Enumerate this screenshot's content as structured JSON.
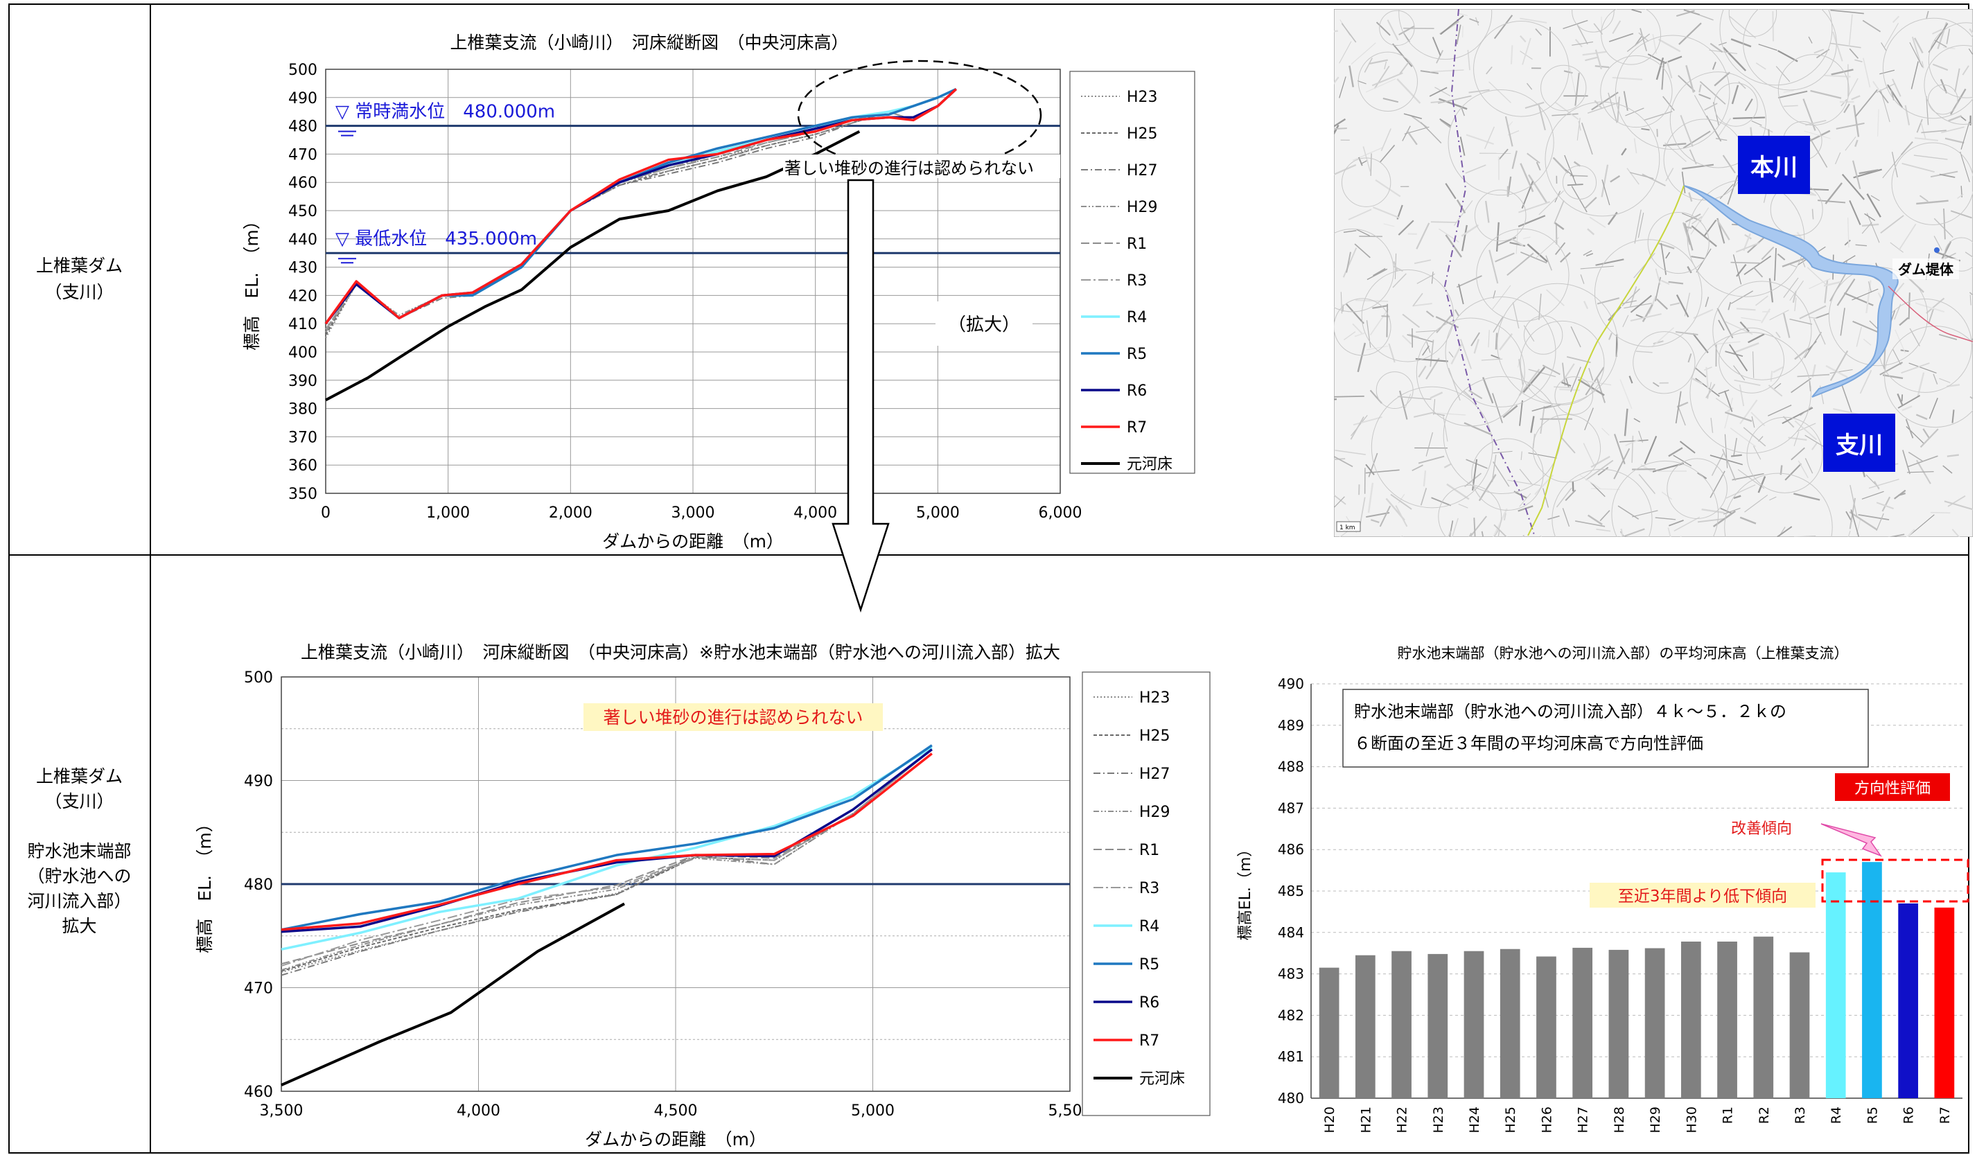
{
  "row_labels": [
    {
      "lines": [
        "上椎葉ダム",
        "（支川）"
      ]
    },
    {
      "lines": [
        "上椎葉ダム",
        "（支川）",
        "",
        "貯水池末端部",
        "（貯水池への",
        "河川流入部）",
        "拡大"
      ]
    }
  ],
  "legend": [
    {
      "name": "H23",
      "color": "#8a8a8a",
      "dash": "2,3"
    },
    {
      "name": "H25",
      "color": "#6a6a6a",
      "dash": "5,3"
    },
    {
      "name": "H27",
      "color": "#7a7a7a",
      "dash": "10,4,2,4"
    },
    {
      "name": "H29",
      "color": "#909090",
      "dash": "8,3,2,3,2,3"
    },
    {
      "name": "R1",
      "color": "#8c8c8c",
      "dash": "12,5"
    },
    {
      "name": "R3",
      "color": "#9a9a9a",
      "dash": "14,4,3,4"
    },
    {
      "name": "R4",
      "color": "#7ff0ff",
      "dash": ""
    },
    {
      "name": "R5",
      "color": "#1f78c0",
      "dash": ""
    },
    {
      "name": "R6",
      "color": "#0a0a8a",
      "dash": ""
    },
    {
      "name": "R7",
      "color": "#ff1a1a",
      "dash": ""
    },
    {
      "name": "元河床",
      "color": "#000000",
      "dash": ""
    }
  ],
  "map": {
    "label_main": "本川",
    "label_branch": "支川",
    "label_dam": "ダム堤体",
    "scale_text": "1 km"
  },
  "chart_data": [
    {
      "type": "line",
      "title": "上椎葉支流（小崎川）　河床縦断図　（中央河床高）",
      "xlabel": "ダムからの距離　（m）",
      "ylabel": "標高　EL.　（m）",
      "xlim": [
        0,
        6000
      ],
      "ylim": [
        350,
        500
      ],
      "xticks": [
        0,
        1000,
        2000,
        3000,
        4000,
        5000,
        6000
      ],
      "xtick_labels": [
        "0",
        "1,000",
        "2,000",
        "3,000",
        "4,000",
        "5,000",
        "6,000"
      ],
      "yticks": [
        350,
        360,
        370,
        380,
        390,
        400,
        410,
        420,
        430,
        440,
        450,
        460,
        470,
        480,
        490,
        500
      ],
      "hlines": [
        {
          "y": 480,
          "label": "▽ 常時満水位　480.000m"
        },
        {
          "y": 435,
          "label": "▽ 最低水位　435.000m"
        }
      ],
      "annotations": [
        "著しい堆砂の進行は認められない",
        "（拡大）"
      ],
      "series": [
        {
          "name": "元河床",
          "x": [
            0,
            350,
            600,
            1000,
            1300,
            1600,
            2000,
            2400,
            2800,
            3200,
            3600,
            4000,
            4360
          ],
          "y": [
            383,
            391,
            398,
            409,
            416,
            422,
            437,
            447,
            450,
            457,
            462,
            470,
            478
          ]
        },
        {
          "name": "H23",
          "x": [
            0,
            250,
            600,
            950,
            1200,
            1600,
            2000,
            2400,
            2800,
            3200,
            3600,
            4000,
            4300,
            4600,
            4800,
            5000,
            5150
          ],
          "y": [
            405,
            424,
            413,
            420,
            420,
            430,
            450,
            460,
            465,
            469,
            473,
            477,
            481,
            485,
            482,
            487,
            493
          ]
        },
        {
          "name": "H25",
          "x": [
            0,
            250,
            600,
            950,
            1200,
            1600,
            2000,
            2400,
            2800,
            3200,
            3600,
            4000,
            4300,
            4600,
            4800,
            5000,
            5150
          ],
          "y": [
            406,
            424,
            412,
            420,
            420,
            430,
            450,
            459,
            464,
            468,
            473,
            477,
            481,
            485,
            482,
            487,
            493
          ]
        },
        {
          "name": "H27",
          "x": [
            0,
            250,
            600,
            950,
            1200,
            1600,
            2000,
            2400,
            2800,
            3200,
            3600,
            4000,
            4300,
            4600,
            4800,
            5000,
            5150
          ],
          "y": [
            407,
            424,
            412,
            419,
            420,
            430,
            450,
            459,
            463,
            467,
            472,
            476,
            481,
            485,
            482,
            487,
            493
          ]
        },
        {
          "name": "H29",
          "x": [
            0,
            250,
            600,
            950,
            1200,
            1600,
            2000,
            2400,
            2800,
            3200,
            3600,
            4000,
            4300,
            4600,
            4800,
            5000,
            5150
          ],
          "y": [
            407,
            424,
            413,
            420,
            421,
            430,
            450,
            460,
            464,
            468,
            473,
            477,
            481,
            485,
            482,
            487,
            493
          ]
        },
        {
          "name": "R1",
          "x": [
            0,
            250,
            600,
            950,
            1200,
            1600,
            2000,
            2400,
            2800,
            3200,
            3600,
            4000,
            4300,
            4600,
            4800,
            5000,
            5150
          ],
          "y": [
            408,
            424,
            412,
            420,
            420,
            430,
            450,
            460,
            465,
            469,
            474,
            478,
            482,
            485,
            482,
            487,
            493
          ]
        },
        {
          "name": "R3",
          "x": [
            0,
            250,
            600,
            950,
            1200,
            1600,
            2000,
            2400,
            2800,
            3200,
            3600,
            4000,
            4300,
            4600,
            4800,
            5000,
            5150
          ],
          "y": [
            408,
            424,
            412,
            420,
            420,
            430,
            450,
            460,
            465,
            470,
            474,
            478,
            482,
            485,
            482,
            487,
            493
          ]
        },
        {
          "name": "R4",
          "x": [
            0,
            250,
            600,
            950,
            1200,
            1600,
            2000,
            2400,
            2800,
            3200,
            3600,
            4000,
            4300,
            4600,
            4800,
            5000,
            5150
          ],
          "y": [
            410,
            424,
            412,
            420,
            420,
            430,
            450,
            460,
            466,
            471,
            475,
            479,
            483,
            485,
            487,
            490,
            493
          ]
        },
        {
          "name": "R5",
          "x": [
            0,
            250,
            600,
            950,
            1200,
            1600,
            2000,
            2400,
            2800,
            3200,
            3600,
            4000,
            4300,
            4600,
            4800,
            5000,
            5150
          ],
          "y": [
            410,
            424,
            412,
            420,
            420,
            430,
            450,
            460,
            467,
            472,
            476,
            480,
            483,
            484,
            487,
            490,
            493
          ]
        },
        {
          "name": "R6",
          "x": [
            0,
            250,
            600,
            950,
            1200,
            1600,
            2000,
            2400,
            2800,
            3200,
            3600,
            4000,
            4300,
            4600,
            4800,
            5000,
            5150
          ],
          "y": [
            410,
            424,
            412,
            420,
            421,
            431,
            450,
            460,
            466,
            470,
            475,
            479,
            482,
            483,
            483,
            487,
            493
          ]
        },
        {
          "name": "R7",
          "x": [
            0,
            250,
            600,
            950,
            1200,
            1600,
            2000,
            2400,
            2800,
            3200,
            3600,
            4000,
            4300,
            4600,
            4800,
            5000,
            5150
          ],
          "y": [
            410,
            425,
            412,
            420,
            421,
            431,
            450,
            461,
            468,
            470,
            475,
            478,
            482,
            483,
            482,
            487,
            493
          ]
        }
      ]
    },
    {
      "type": "line",
      "title": "上椎葉支流（小崎川）　河床縦断図　（中央河床高）※貯水池末端部（貯水池への河川流入部）拡大",
      "xlabel": "ダムからの距離　（m）",
      "ylabel": "標高　EL.　（m）",
      "xlim": [
        3500,
        5500
      ],
      "ylim": [
        460,
        500
      ],
      "xticks": [
        3500,
        4000,
        4500,
        5000,
        5500
      ],
      "xtick_labels": [
        "3,500",
        "4,000",
        "4,500",
        "5,000",
        "5,500"
      ],
      "yticks": [
        460,
        470,
        480,
        490,
        500
      ],
      "hlines": [
        {
          "y": 480,
          "label": ""
        }
      ],
      "annotations": [
        "著しい堆砂の進行は認められない"
      ],
      "series": [
        {
          "name": "元河床",
          "x": [
            3500,
            3750,
            3930,
            4150,
            4370
          ],
          "y": [
            460.6,
            464.8,
            467.6,
            473.5,
            478.1
          ]
        },
        {
          "name": "H23",
          "x": [
            3500,
            3700,
            3900,
            4100,
            4350,
            4550,
            4750,
            4950,
            5150
          ],
          "y": [
            471.5,
            473.6,
            475.5,
            477.4,
            479.1,
            482.6,
            482.3,
            486.8,
            493
          ]
        },
        {
          "name": "H25",
          "x": [
            3500,
            3700,
            3900,
            4100,
            4350,
            4550,
            4750,
            4950,
            5150
          ],
          "y": [
            471.6,
            473.9,
            475.8,
            477.5,
            479.0,
            482.6,
            482.3,
            486.8,
            493
          ]
        },
        {
          "name": "H27",
          "x": [
            3500,
            3700,
            3900,
            4100,
            4350,
            4550,
            4750,
            4950,
            5150
          ],
          "y": [
            471.2,
            473.5,
            475.5,
            477.3,
            479.0,
            482.8,
            481.9,
            486.8,
            493
          ]
        },
        {
          "name": "H29",
          "x": [
            3500,
            3700,
            3900,
            4100,
            4350,
            4550,
            4750,
            4950,
            5150
          ],
          "y": [
            471.7,
            474.1,
            476.1,
            478.0,
            479.5,
            482.5,
            481.9,
            486.8,
            493
          ]
        },
        {
          "name": "R1",
          "x": [
            3500,
            3700,
            3900,
            4100,
            4350,
            4550,
            4750,
            4950,
            5150
          ],
          "y": [
            472.3,
            474.3,
            476.1,
            478.2,
            479.9,
            482.8,
            482.5,
            486.8,
            493
          ]
        },
        {
          "name": "R3",
          "x": [
            3500,
            3700,
            3900,
            4100,
            4350,
            4550,
            4750,
            4950,
            5150
          ],
          "y": [
            472.1,
            474.6,
            476.5,
            478.5,
            479.7,
            482.6,
            482.3,
            486.8,
            493
          ]
        },
        {
          "name": "R4",
          "x": [
            3500,
            3700,
            3900,
            4100,
            4350,
            4550,
            4750,
            4950,
            5150
          ],
          "y": [
            473.7,
            475.3,
            477.3,
            478.6,
            481.8,
            483.5,
            485.6,
            488.5,
            493.2
          ]
        },
        {
          "name": "R5",
          "x": [
            3500,
            3700,
            3900,
            4100,
            4350,
            4550,
            4750,
            4950,
            5150
          ],
          "y": [
            475.6,
            477.1,
            478.3,
            480.5,
            482.8,
            483.9,
            485.4,
            488.2,
            493.4
          ]
        },
        {
          "name": "R6",
          "x": [
            3500,
            3700,
            3900,
            4100,
            4350,
            4550,
            4750,
            4950,
            5150
          ],
          "y": [
            475.4,
            475.9,
            477.9,
            480.2,
            482.1,
            482.8,
            482.7,
            487.2,
            493
          ]
        },
        {
          "name": "R7",
          "x": [
            3500,
            3700,
            3900,
            4100,
            4350,
            4550,
            4750,
            4950,
            5150
          ],
          "y": [
            475.6,
            476.2,
            478.0,
            480.0,
            482.3,
            482.8,
            482.9,
            486.6,
            492.6
          ]
        }
      ]
    },
    {
      "type": "bar",
      "title": "貯水池末端部（貯水池への河川流入部）の平均河床高（上椎葉支流）",
      "ylabel": "標高EL.（m）",
      "ylim": [
        480,
        490
      ],
      "yticks": [
        480,
        481,
        482,
        483,
        484,
        485,
        486,
        487,
        488,
        489,
        490
      ],
      "categories": [
        "H20",
        "H21",
        "H22",
        "H23",
        "H24",
        "H25",
        "H26",
        "H27",
        "H28",
        "H29",
        "H30",
        "R1",
        "R2",
        "R3",
        "R4",
        "R5",
        "R6",
        "R7"
      ],
      "values": [
        483.15,
        483.45,
        483.55,
        483.48,
        483.55,
        483.6,
        483.42,
        483.63,
        483.58,
        483.62,
        483.78,
        483.78,
        483.9,
        483.52,
        485.45,
        485.7,
        484.7,
        484.6
      ],
      "bar_colors": [
        "#808080",
        "#808080",
        "#808080",
        "#808080",
        "#808080",
        "#808080",
        "#808080",
        "#808080",
        "#808080",
        "#808080",
        "#808080",
        "#808080",
        "#808080",
        "#808080",
        "#66f2ff",
        "#19b5f0",
        "#1010c8",
        "#ff0000"
      ],
      "note_lines": [
        "貯水池末端部（貯水池への河川流入部）４ｋ～５．２ｋの",
        "６断面の至近３年間の平均河床高で方向性評価"
      ],
      "eval_badge": "方向性評価",
      "trend_up": "改善傾向",
      "trend_down": "至近3年間より低下傾向"
    }
  ]
}
